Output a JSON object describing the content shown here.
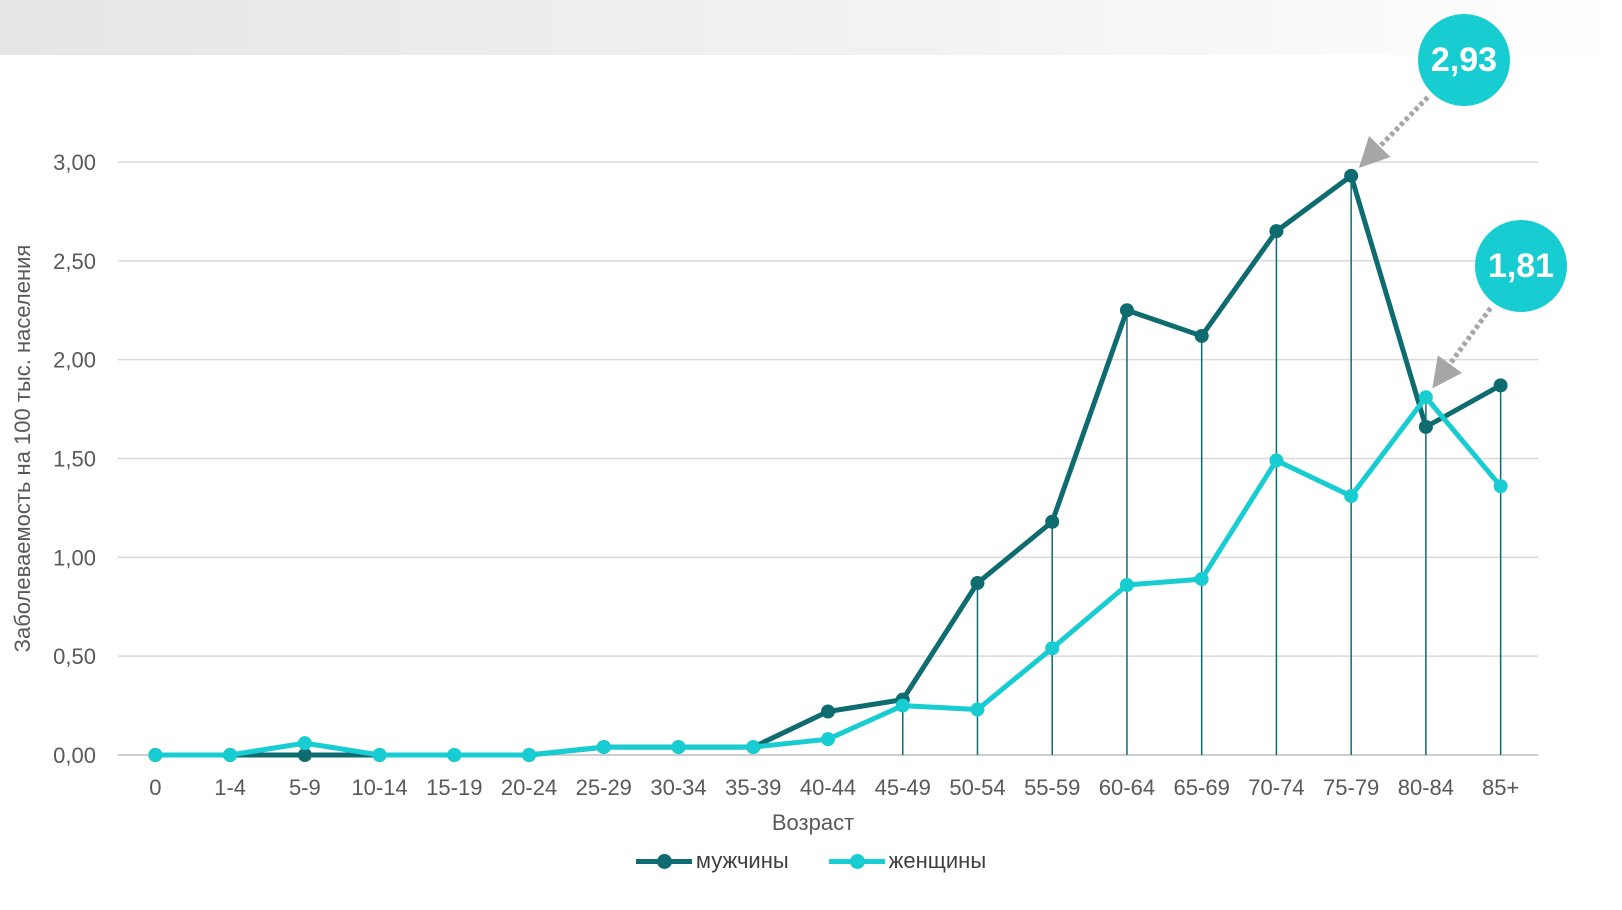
{
  "chart_data": {
    "type": "line",
    "title": "",
    "xlabel": "Возраст",
    "ylabel": "Заболеваемость на 100 тыс. населения",
    "categories": [
      "0",
      "1-4",
      "5-9",
      "10-14",
      "15-19",
      "20-24",
      "25-29",
      "30-34",
      "35-39",
      "40-44",
      "45-49",
      "50-54",
      "55-59",
      "60-64",
      "65-69",
      "70-74",
      "75-79",
      "80-84",
      "85+"
    ],
    "ylim": [
      0,
      3
    ],
    "yticks": [
      "0,00",
      "0,50",
      "1,00",
      "1,50",
      "2,00",
      "2,50",
      "3,00"
    ],
    "grid": true,
    "legend_position": "bottom",
    "series": [
      {
        "name": "мужчины",
        "color": "#0e6b70",
        "values": [
          0,
          0,
          0,
          0,
          0,
          0,
          0.04,
          0.04,
          0.04,
          0.22,
          0.28,
          0.87,
          1.18,
          2.25,
          2.12,
          2.65,
          2.93,
          1.66,
          1.87
        ]
      },
      {
        "name": "женщины",
        "color": "#17cdd2",
        "values": [
          0,
          0,
          0.06,
          0,
          0,
          0,
          0.04,
          0.04,
          0.04,
          0.08,
          0.25,
          0.23,
          0.54,
          0.86,
          0.89,
          1.49,
          1.31,
          1.81,
          1.36
        ]
      }
    ],
    "annotations": [
      {
        "label": "2,93",
        "series": 0,
        "category": "75-79"
      },
      {
        "label": "1,81",
        "series": 1,
        "category": "80-84"
      }
    ],
    "callout_color": "#17cdd2"
  }
}
